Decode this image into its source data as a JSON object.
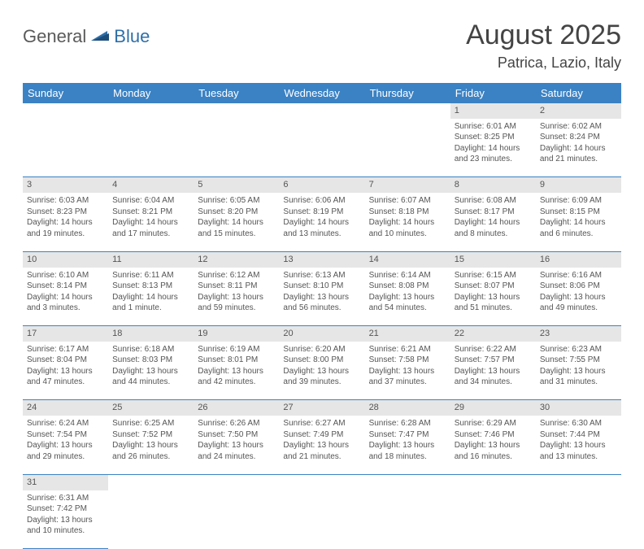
{
  "brand": {
    "general": "General",
    "blue": "Blue"
  },
  "title": "August 2025",
  "location": "Patrica, Lazio, Italy",
  "colors": {
    "header_bg": "#3b82c4",
    "header_fg": "#ffffff",
    "daynum_bg": "#e6e6e6",
    "border": "#3b82c4",
    "text": "#555555",
    "title": "#444444"
  },
  "weekdays": [
    "Sunday",
    "Monday",
    "Tuesday",
    "Wednesday",
    "Thursday",
    "Friday",
    "Saturday"
  ],
  "weeks": [
    [
      null,
      null,
      null,
      null,
      null,
      {
        "n": "1",
        "sr": "Sunrise: 6:01 AM",
        "ss": "Sunset: 8:25 PM",
        "d1": "Daylight: 14 hours",
        "d2": "and 23 minutes."
      },
      {
        "n": "2",
        "sr": "Sunrise: 6:02 AM",
        "ss": "Sunset: 8:24 PM",
        "d1": "Daylight: 14 hours",
        "d2": "and 21 minutes."
      }
    ],
    [
      {
        "n": "3",
        "sr": "Sunrise: 6:03 AM",
        "ss": "Sunset: 8:23 PM",
        "d1": "Daylight: 14 hours",
        "d2": "and 19 minutes."
      },
      {
        "n": "4",
        "sr": "Sunrise: 6:04 AM",
        "ss": "Sunset: 8:21 PM",
        "d1": "Daylight: 14 hours",
        "d2": "and 17 minutes."
      },
      {
        "n": "5",
        "sr": "Sunrise: 6:05 AM",
        "ss": "Sunset: 8:20 PM",
        "d1": "Daylight: 14 hours",
        "d2": "and 15 minutes."
      },
      {
        "n": "6",
        "sr": "Sunrise: 6:06 AM",
        "ss": "Sunset: 8:19 PM",
        "d1": "Daylight: 14 hours",
        "d2": "and 13 minutes."
      },
      {
        "n": "7",
        "sr": "Sunrise: 6:07 AM",
        "ss": "Sunset: 8:18 PM",
        "d1": "Daylight: 14 hours",
        "d2": "and 10 minutes."
      },
      {
        "n": "8",
        "sr": "Sunrise: 6:08 AM",
        "ss": "Sunset: 8:17 PM",
        "d1": "Daylight: 14 hours",
        "d2": "and 8 minutes."
      },
      {
        "n": "9",
        "sr": "Sunrise: 6:09 AM",
        "ss": "Sunset: 8:15 PM",
        "d1": "Daylight: 14 hours",
        "d2": "and 6 minutes."
      }
    ],
    [
      {
        "n": "10",
        "sr": "Sunrise: 6:10 AM",
        "ss": "Sunset: 8:14 PM",
        "d1": "Daylight: 14 hours",
        "d2": "and 3 minutes."
      },
      {
        "n": "11",
        "sr": "Sunrise: 6:11 AM",
        "ss": "Sunset: 8:13 PM",
        "d1": "Daylight: 14 hours",
        "d2": "and 1 minute."
      },
      {
        "n": "12",
        "sr": "Sunrise: 6:12 AM",
        "ss": "Sunset: 8:11 PM",
        "d1": "Daylight: 13 hours",
        "d2": "and 59 minutes."
      },
      {
        "n": "13",
        "sr": "Sunrise: 6:13 AM",
        "ss": "Sunset: 8:10 PM",
        "d1": "Daylight: 13 hours",
        "d2": "and 56 minutes."
      },
      {
        "n": "14",
        "sr": "Sunrise: 6:14 AM",
        "ss": "Sunset: 8:08 PM",
        "d1": "Daylight: 13 hours",
        "d2": "and 54 minutes."
      },
      {
        "n": "15",
        "sr": "Sunrise: 6:15 AM",
        "ss": "Sunset: 8:07 PM",
        "d1": "Daylight: 13 hours",
        "d2": "and 51 minutes."
      },
      {
        "n": "16",
        "sr": "Sunrise: 6:16 AM",
        "ss": "Sunset: 8:06 PM",
        "d1": "Daylight: 13 hours",
        "d2": "and 49 minutes."
      }
    ],
    [
      {
        "n": "17",
        "sr": "Sunrise: 6:17 AM",
        "ss": "Sunset: 8:04 PM",
        "d1": "Daylight: 13 hours",
        "d2": "and 47 minutes."
      },
      {
        "n": "18",
        "sr": "Sunrise: 6:18 AM",
        "ss": "Sunset: 8:03 PM",
        "d1": "Daylight: 13 hours",
        "d2": "and 44 minutes."
      },
      {
        "n": "19",
        "sr": "Sunrise: 6:19 AM",
        "ss": "Sunset: 8:01 PM",
        "d1": "Daylight: 13 hours",
        "d2": "and 42 minutes."
      },
      {
        "n": "20",
        "sr": "Sunrise: 6:20 AM",
        "ss": "Sunset: 8:00 PM",
        "d1": "Daylight: 13 hours",
        "d2": "and 39 minutes."
      },
      {
        "n": "21",
        "sr": "Sunrise: 6:21 AM",
        "ss": "Sunset: 7:58 PM",
        "d1": "Daylight: 13 hours",
        "d2": "and 37 minutes."
      },
      {
        "n": "22",
        "sr": "Sunrise: 6:22 AM",
        "ss": "Sunset: 7:57 PM",
        "d1": "Daylight: 13 hours",
        "d2": "and 34 minutes."
      },
      {
        "n": "23",
        "sr": "Sunrise: 6:23 AM",
        "ss": "Sunset: 7:55 PM",
        "d1": "Daylight: 13 hours",
        "d2": "and 31 minutes."
      }
    ],
    [
      {
        "n": "24",
        "sr": "Sunrise: 6:24 AM",
        "ss": "Sunset: 7:54 PM",
        "d1": "Daylight: 13 hours",
        "d2": "and 29 minutes."
      },
      {
        "n": "25",
        "sr": "Sunrise: 6:25 AM",
        "ss": "Sunset: 7:52 PM",
        "d1": "Daylight: 13 hours",
        "d2": "and 26 minutes."
      },
      {
        "n": "26",
        "sr": "Sunrise: 6:26 AM",
        "ss": "Sunset: 7:50 PM",
        "d1": "Daylight: 13 hours",
        "d2": "and 24 minutes."
      },
      {
        "n": "27",
        "sr": "Sunrise: 6:27 AM",
        "ss": "Sunset: 7:49 PM",
        "d1": "Daylight: 13 hours",
        "d2": "and 21 minutes."
      },
      {
        "n": "28",
        "sr": "Sunrise: 6:28 AM",
        "ss": "Sunset: 7:47 PM",
        "d1": "Daylight: 13 hours",
        "d2": "and 18 minutes."
      },
      {
        "n": "29",
        "sr": "Sunrise: 6:29 AM",
        "ss": "Sunset: 7:46 PM",
        "d1": "Daylight: 13 hours",
        "d2": "and 16 minutes."
      },
      {
        "n": "30",
        "sr": "Sunrise: 6:30 AM",
        "ss": "Sunset: 7:44 PM",
        "d1": "Daylight: 13 hours",
        "d2": "and 13 minutes."
      }
    ],
    [
      {
        "n": "31",
        "sr": "Sunrise: 6:31 AM",
        "ss": "Sunset: 7:42 PM",
        "d1": "Daylight: 13 hours",
        "d2": "and 10 minutes."
      },
      null,
      null,
      null,
      null,
      null,
      null
    ]
  ]
}
